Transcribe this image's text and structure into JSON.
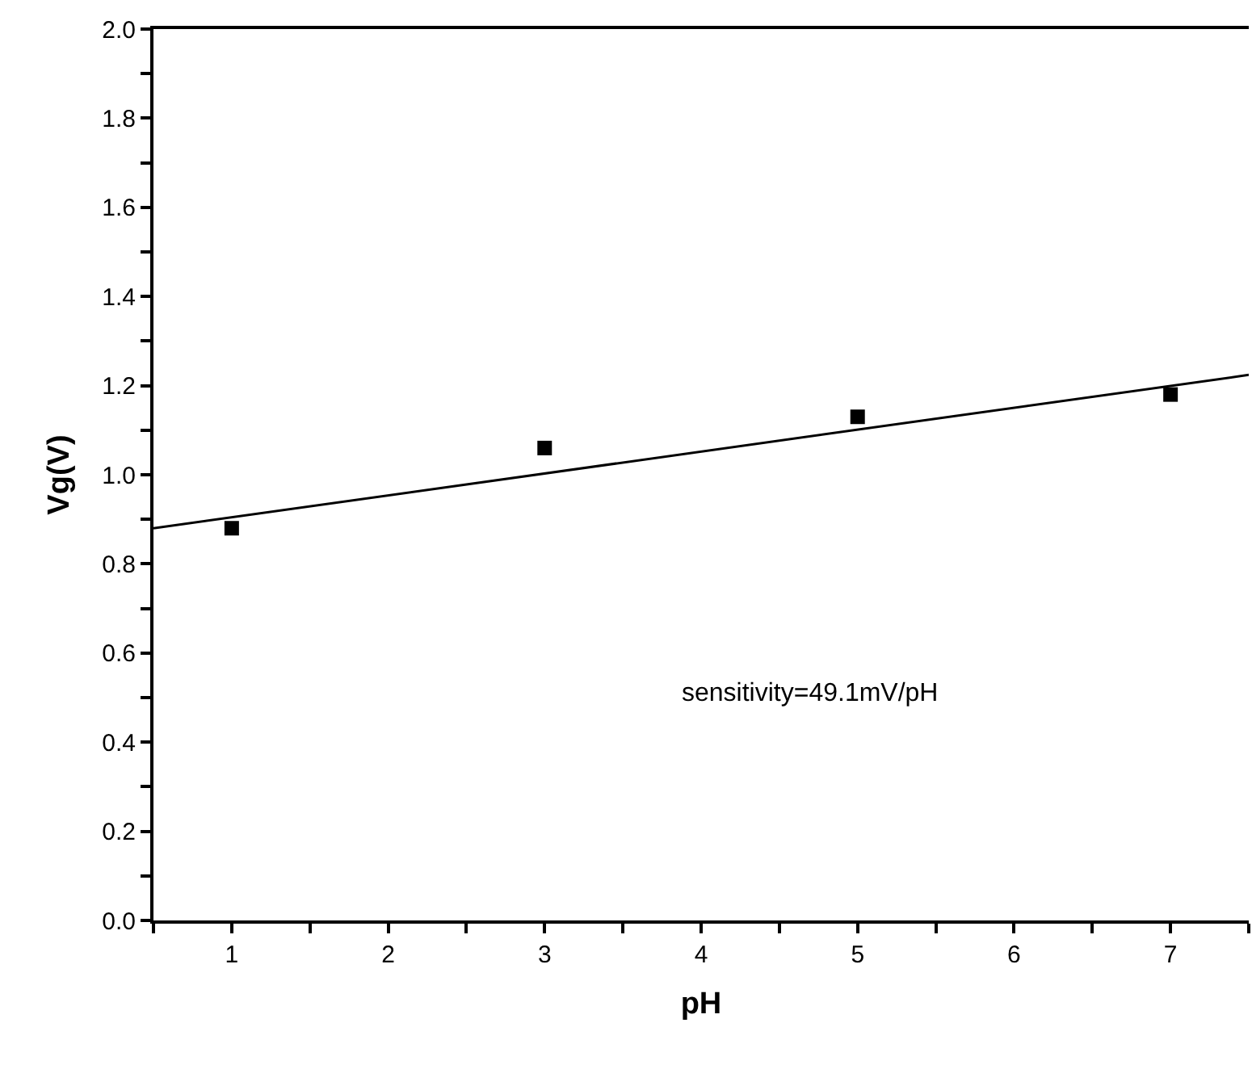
{
  "chart_data": {
    "type": "scatter",
    "xlabel": "pH",
    "ylabel": "Vg(V)",
    "x": [
      1,
      3,
      5,
      7
    ],
    "series": [
      {
        "color": "#000000",
        "values": [
          0.88,
          1.06,
          1.13,
          1.18
        ],
        "marker": "square"
      },
      {
        "type": "line",
        "color": "#000000",
        "x": [
          0.5,
          7.5
        ],
        "values": [
          0.88,
          1.224
        ],
        "marker": "none",
        "line_style": "solid"
      }
    ],
    "annotations": [
      "sensitivity=49.1mV/pH"
    ],
    "xlim": [
      0.5,
      7.5
    ],
    "ylim": [
      0,
      2.0
    ],
    "xticks": [
      {
        "value": 0.5,
        "label": null
      },
      1,
      {
        "value": 1.5,
        "label": null
      },
      2,
      {
        "value": 2.5,
        "label": null
      },
      3,
      {
        "value": 3.5,
        "label": null
      },
      4,
      {
        "value": 4.5,
        "label": null
      },
      5,
      {
        "value": 5.5,
        "label": null
      },
      6,
      {
        "value": 6.5,
        "label": null
      },
      7,
      {
        "value": 7.5,
        "label": null
      }
    ],
    "yticks": [
      "0.0",
      {
        "value": 0.1,
        "label": null
      },
      0.2,
      {
        "value": 0.3,
        "label": null
      },
      0.4,
      {
        "value": 0.5,
        "label": null
      },
      0.6,
      {
        "value": 0.7,
        "label": null
      },
      0.8,
      {
        "value": 0.9,
        "label": null
      },
      {
        "value": 1.0,
        "label": "1.0"
      },
      {
        "value": 1.1,
        "label": null
      },
      1.2,
      {
        "value": 1.3,
        "label": null
      },
      1.4,
      {
        "value": 1.5,
        "label": null
      },
      1.6,
      {
        "value": 1.7,
        "label": null
      },
      1.8,
      {
        "value": 1.9,
        "label": null
      },
      {
        "value": 2.0,
        "label": "2.0"
      }
    ]
  }
}
